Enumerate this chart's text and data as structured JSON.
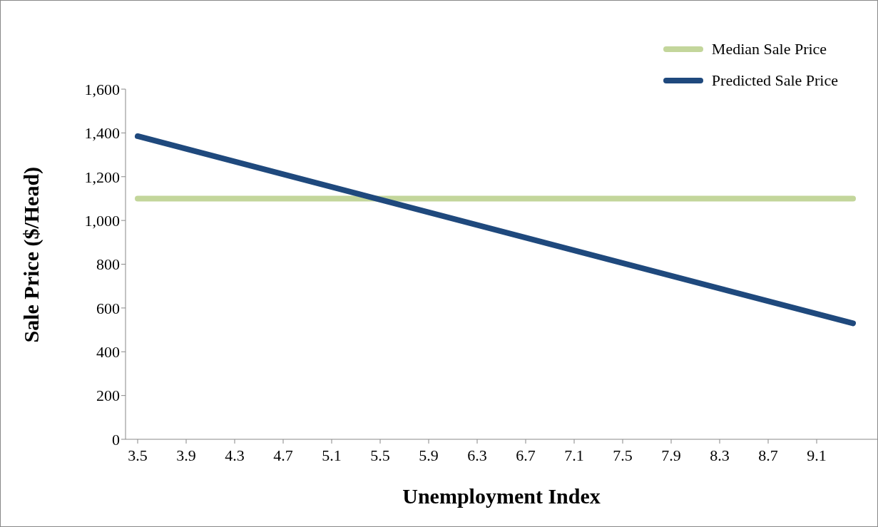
{
  "chart_data": {
    "type": "line",
    "xlabel": "Unemployment Index",
    "ylabel": "Sale Price ($/Head)",
    "x": [
      3.5,
      9.4
    ],
    "series": [
      {
        "name": "Median Sale Price",
        "color": "#c3d69b",
        "values": [
          1100,
          1100
        ]
      },
      {
        "name": "Predicted Sale Price",
        "color": "#1f497d",
        "values": [
          1385,
          530
        ]
      }
    ],
    "xlim": [
      3.4,
      9.6
    ],
    "xticks": [
      3.5,
      3.9,
      4.3,
      4.7,
      5.1,
      5.5,
      5.9,
      6.3,
      6.7,
      7.1,
      7.5,
      7.9,
      8.3,
      8.7,
      9.1
    ],
    "ylim": [
      0,
      1600
    ],
    "yticks": [
      0,
      200,
      400,
      600,
      800,
      {
        "value": 1000,
        "label": "1,000"
      },
      {
        "value": 1200,
        "label": "1,200"
      },
      {
        "value": 1400,
        "label": "1,400"
      },
      {
        "value": 1600,
        "label": "1,600"
      }
    ],
    "grid": false,
    "legend": "top right",
    "marker": "none",
    "line_style": "solid"
  }
}
